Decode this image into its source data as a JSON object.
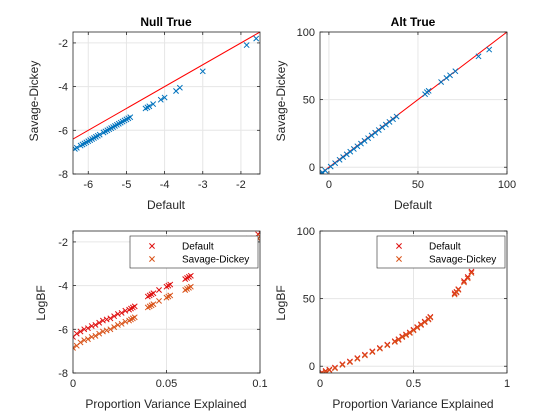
{
  "figure": {
    "background": "#ffffff"
  },
  "colors": {
    "marker_blue": "#0072bd",
    "line_red": "#ff0000",
    "default_red": "#e01010",
    "savage_orange": "#d95319",
    "grid": "#e6e6e6",
    "axis": "#262626"
  },
  "chart_data": [
    {
      "type": "scatter",
      "panel": "top-left",
      "title": "Null True",
      "xlabel": "Default",
      "ylabel": "Savage-Dickey",
      "xlim": [
        -6.4,
        -1.5
      ],
      "ylim": [
        -8,
        -1.5
      ],
      "xticks": [
        -6,
        -5,
        -4,
        -3,
        -2
      ],
      "yticks": [
        -8,
        -6,
        -4,
        -2
      ],
      "grid": true,
      "legend": null,
      "reference_line": {
        "type": "y=x",
        "color": "#ff0000"
      },
      "series": [
        {
          "marker": "x",
          "color": "#0072bd",
          "x": [
            -6.35,
            -6.3,
            -6.2,
            -6.15,
            -6.1,
            -6.05,
            -6.0,
            -5.95,
            -5.9,
            -5.85,
            -5.8,
            -5.75,
            -5.7,
            -5.6,
            -5.55,
            -5.5,
            -5.45,
            -5.4,
            -5.35,
            -5.3,
            -5.25,
            -5.2,
            -5.15,
            -5.1,
            -5.05,
            -5.0,
            -4.95,
            -4.9,
            -4.5,
            -4.45,
            -4.4,
            -4.3,
            -4.1,
            -4.0,
            -3.7,
            -3.6,
            -3.0,
            -1.85,
            -1.6
          ],
          "y": [
            -6.85,
            -6.8,
            -6.7,
            -6.65,
            -6.6,
            -6.55,
            -6.5,
            -6.45,
            -6.4,
            -6.35,
            -6.3,
            -6.25,
            -6.2,
            -6.1,
            -6.05,
            -6.0,
            -5.95,
            -5.9,
            -5.85,
            -5.8,
            -5.75,
            -5.7,
            -5.65,
            -5.6,
            -5.55,
            -5.5,
            -5.45,
            -5.4,
            -5.0,
            -4.95,
            -4.9,
            -4.8,
            -4.6,
            -4.5,
            -4.2,
            -4.05,
            -3.3,
            -2.1,
            -1.8
          ]
        }
      ]
    },
    {
      "type": "scatter",
      "panel": "top-right",
      "title": "Alt True",
      "xlabel": "Default",
      "ylabel": "Savage-Dickey",
      "xlim": [
        -5,
        100
      ],
      "ylim": [
        -5,
        100
      ],
      "xticks": [
        0,
        50,
        100
      ],
      "yticks": [
        0,
        50,
        100
      ],
      "grid": true,
      "legend": null,
      "reference_line": {
        "type": "y=x",
        "color": "#ff0000"
      },
      "series": [
        {
          "marker": "x",
          "color": "#0072bd",
          "x": [
            -4.5,
            -4.0,
            -3.5,
            -2.0,
            1.0,
            3.5,
            6.0,
            8.0,
            10.0,
            12.0,
            14.0,
            16.0,
            18.0,
            20.0,
            22.0,
            24.0,
            26.0,
            28.0,
            30.0,
            32.0,
            34.0,
            36.0,
            38.0,
            54.0,
            55.0,
            56.0,
            63.0,
            66.0,
            68.0,
            71.0,
            84.0,
            90.0
          ],
          "y": [
            -5.0,
            -4.5,
            -4.0,
            -2.5,
            0.5,
            3.0,
            5.5,
            7.5,
            9.5,
            11.5,
            13.5,
            15.5,
            17.5,
            19.5,
            21.5,
            23.5,
            25.5,
            27.5,
            29.5,
            31.5,
            33.5,
            35.5,
            37.5,
            54.0,
            55.5,
            56.5,
            63.0,
            66.0,
            68.0,
            71.0,
            82.0,
            87.0
          ]
        }
      ]
    },
    {
      "type": "scatter",
      "panel": "bottom-left",
      "title": "",
      "xlabel": "Proportion Variance Explained",
      "ylabel": "LogBF",
      "xlim": [
        0,
        0.1
      ],
      "ylim": [
        -8,
        -1.5
      ],
      "xticks": [
        0,
        0.05,
        0.1
      ],
      "xtick_labels": [
        "0",
        "0.05",
        "0.1"
      ],
      "yticks": [
        -8,
        -6,
        -4,
        -2
      ],
      "grid": true,
      "legend": {
        "placement": "top-right",
        "entries": [
          "Default",
          "Savage-Dickey"
        ]
      },
      "series": [
        {
          "name": "Default",
          "marker": "x",
          "color": "#e01010",
          "x": [
            0.0,
            0.002,
            0.004,
            0.006,
            0.008,
            0.01,
            0.012,
            0.014,
            0.016,
            0.018,
            0.02,
            0.022,
            0.024,
            0.026,
            0.028,
            0.03,
            0.031,
            0.032,
            0.033,
            0.04,
            0.041,
            0.042,
            0.043,
            0.046,
            0.05,
            0.051,
            0.052,
            0.06,
            0.061,
            0.062,
            0.063,
            0.094,
            0.099,
            0.1
          ],
          "y": [
            -6.35,
            -6.2,
            -6.1,
            -6.0,
            -5.95,
            -5.85,
            -5.8,
            -5.7,
            -5.6,
            -5.55,
            -5.5,
            -5.4,
            -5.3,
            -5.25,
            -5.15,
            -5.1,
            -5.05,
            -5.0,
            -4.95,
            -4.5,
            -4.45,
            -4.4,
            -4.35,
            -4.2,
            -4.05,
            -4.0,
            -3.95,
            -3.7,
            -3.65,
            -3.6,
            -3.55,
            -1.85,
            -1.65,
            -1.55
          ]
        },
        {
          "name": "Savage-Dickey",
          "marker": "x",
          "color": "#d95319",
          "x": [
            0.0,
            0.002,
            0.004,
            0.006,
            0.008,
            0.01,
            0.012,
            0.014,
            0.016,
            0.018,
            0.02,
            0.022,
            0.024,
            0.026,
            0.028,
            0.03,
            0.031,
            0.032,
            0.033,
            0.04,
            0.041,
            0.042,
            0.043,
            0.046,
            0.05,
            0.051,
            0.052,
            0.06,
            0.061,
            0.062,
            0.063,
            0.094,
            0.099,
            0.1
          ],
          "y": [
            -6.85,
            -6.75,
            -6.6,
            -6.5,
            -6.45,
            -6.35,
            -6.3,
            -6.2,
            -6.1,
            -6.05,
            -6.0,
            -5.9,
            -5.8,
            -5.75,
            -5.65,
            -5.6,
            -5.55,
            -5.5,
            -5.45,
            -5.0,
            -4.95,
            -4.9,
            -4.85,
            -4.7,
            -4.55,
            -4.5,
            -4.45,
            -4.2,
            -4.15,
            -4.1,
            -4.05,
            -2.1,
            -1.85,
            -1.75
          ]
        }
      ]
    },
    {
      "type": "scatter",
      "panel": "bottom-right",
      "title": "",
      "xlabel": "Proportion Variance Explained",
      "ylabel": "LogBF",
      "xlim": [
        0,
        1
      ],
      "ylim": [
        -5,
        100
      ],
      "xticks": [
        0,
        0.5,
        1
      ],
      "xtick_labels": [
        "0",
        "0.5",
        "1"
      ],
      "yticks": [
        0,
        50,
        100
      ],
      "grid": true,
      "legend": {
        "placement": "top-right",
        "entries": [
          "Default",
          "Savage-Dickey"
        ]
      },
      "series": [
        {
          "name": "Default",
          "marker": "x",
          "color": "#e01010",
          "x": [
            0.01,
            0.03,
            0.05,
            0.08,
            0.12,
            0.16,
            0.2,
            0.24,
            0.28,
            0.32,
            0.36,
            0.4,
            0.42,
            0.44,
            0.46,
            0.48,
            0.5,
            0.52,
            0.54,
            0.56,
            0.58,
            0.59,
            0.72,
            0.73,
            0.74,
            0.77,
            0.79,
            0.81
          ],
          "y": [
            -4.5,
            -3.5,
            -2.5,
            -1.0,
            1.5,
            3.5,
            6.0,
            8.5,
            11.0,
            13.5,
            16.0,
            18.5,
            20.0,
            22.0,
            23.5,
            25.0,
            27.0,
            29.0,
            31.0,
            33.0,
            35.0,
            36.5,
            54.0,
            55.0,
            57.0,
            63.0,
            66.0,
            70.0
          ]
        },
        {
          "name": "Savage-Dickey",
          "marker": "x",
          "color": "#d95319",
          "x": [
            0.01,
            0.03,
            0.05,
            0.08,
            0.12,
            0.16,
            0.2,
            0.24,
            0.28,
            0.32,
            0.36,
            0.4,
            0.42,
            0.44,
            0.46,
            0.48,
            0.5,
            0.52,
            0.54,
            0.56,
            0.58,
            0.59,
            0.72,
            0.73,
            0.74,
            0.77,
            0.79,
            0.81
          ],
          "y": [
            -5.0,
            -4.0,
            -3.0,
            -1.5,
            1.0,
            3.0,
            5.5,
            8.0,
            10.5,
            13.0,
            15.5,
            18.0,
            19.5,
            21.5,
            23.0,
            24.5,
            26.5,
            28.5,
            30.5,
            32.5,
            34.5,
            36.0,
            53.0,
            54.5,
            56.5,
            62.0,
            65.0,
            69.0
          ]
        }
      ]
    }
  ]
}
